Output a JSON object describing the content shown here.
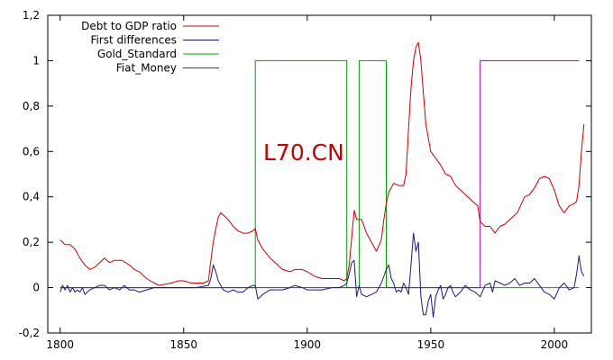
{
  "watermark": "L70.CN",
  "colors": {
    "debt": "#cc0000",
    "diff": "#1a1a80",
    "gold": "#00a000",
    "fiat": "#a000a0"
  },
  "chart_data": {
    "type": "line",
    "title": "",
    "xlabel": "",
    "ylabel": "",
    "xlim": [
      1795,
      2015
    ],
    "ylim": [
      -0.2,
      1.2
    ],
    "xticks": [
      1800,
      1850,
      1900,
      1950,
      2000
    ],
    "xtick_labels": [
      "1800",
      "1850",
      "1900",
      "1950",
      "2000"
    ],
    "yticks": [
      -0.2,
      0,
      0.2,
      0.4,
      0.6,
      0.8,
      1,
      1.2
    ],
    "ytick_labels": [
      "-0,2",
      "0",
      "0,2",
      "0,4",
      "0,6",
      "0,8",
      "1",
      "1,2"
    ],
    "legend_position": "top-left",
    "grid": false,
    "series": [
      {
        "name": "Debt to GDP ratio",
        "x": [
          1800,
          1802,
          1804,
          1806,
          1808,
          1810,
          1812,
          1814,
          1816,
          1818,
          1820,
          1822,
          1825,
          1828,
          1830,
          1832,
          1835,
          1838,
          1840,
          1845,
          1848,
          1850,
          1853,
          1855,
          1858,
          1860,
          1861,
          1862,
          1863,
          1864,
          1865,
          1866,
          1868,
          1870,
          1872,
          1874,
          1876,
          1878,
          1879,
          1880,
          1882,
          1885,
          1888,
          1890,
          1893,
          1895,
          1898,
          1900,
          1903,
          1906,
          1910,
          1913,
          1915,
          1916,
          1917,
          1918,
          1919,
          1920,
          1922,
          1924,
          1926,
          1928,
          1930,
          1931,
          1932,
          1933,
          1934,
          1935,
          1937,
          1939,
          1940,
          1941,
          1942,
          1943,
          1944,
          1945,
          1946,
          1947,
          1948,
          1950,
          1952,
          1954,
          1956,
          1958,
          1960,
          1963,
          1966,
          1969,
          1970,
          1972,
          1974,
          1976,
          1978,
          1980,
          1982,
          1985,
          1988,
          1990,
          1992,
          1994,
          1996,
          1998,
          2000,
          2002,
          2004,
          2006,
          2008,
          2009,
          2010,
          2011,
          2012
        ],
        "y": [
          0.21,
          0.19,
          0.19,
          0.17,
          0.13,
          0.1,
          0.08,
          0.09,
          0.11,
          0.13,
          0.11,
          0.12,
          0.12,
          0.1,
          0.08,
          0.07,
          0.04,
          0.02,
          0.01,
          0.02,
          0.03,
          0.03,
          0.02,
          0.02,
          0.02,
          0.03,
          0.12,
          0.2,
          0.26,
          0.31,
          0.33,
          0.32,
          0.3,
          0.27,
          0.25,
          0.24,
          0.24,
          0.25,
          0.26,
          0.21,
          0.17,
          0.13,
          0.1,
          0.08,
          0.07,
          0.08,
          0.08,
          0.07,
          0.05,
          0.04,
          0.04,
          0.04,
          0.03,
          0.04,
          0.1,
          0.22,
          0.34,
          0.3,
          0.3,
          0.24,
          0.2,
          0.16,
          0.21,
          0.3,
          0.37,
          0.42,
          0.44,
          0.46,
          0.45,
          0.45,
          0.5,
          0.7,
          0.88,
          1.0,
          1.06,
          1.08,
          1.0,
          0.86,
          0.72,
          0.6,
          0.57,
          0.54,
          0.5,
          0.49,
          0.45,
          0.42,
          0.39,
          0.36,
          0.29,
          0.27,
          0.27,
          0.24,
          0.27,
          0.28,
          0.3,
          0.33,
          0.4,
          0.41,
          0.44,
          0.48,
          0.49,
          0.48,
          0.43,
          0.36,
          0.33,
          0.36,
          0.37,
          0.38,
          0.45,
          0.6,
          0.72
        ]
      },
      {
        "name": "First differences",
        "x": [
          1800,
          1801,
          1802,
          1803,
          1804,
          1805,
          1806,
          1807,
          1808,
          1809,
          1810,
          1812,
          1814,
          1816,
          1818,
          1820,
          1822,
          1824,
          1826,
          1828,
          1830,
          1832,
          1835,
          1838,
          1840,
          1845,
          1850,
          1855,
          1860,
          1861,
          1862,
          1863,
          1864,
          1865,
          1866,
          1868,
          1870,
          1872,
          1874,
          1876,
          1878,
          1879,
          1880,
          1882,
          1885,
          1888,
          1890,
          1893,
          1895,
          1898,
          1900,
          1903,
          1906,
          1910,
          1913,
          1915,
          1916,
          1917,
          1918,
          1919,
          1920,
          1921,
          1922,
          1924,
          1926,
          1928,
          1930,
          1931,
          1932,
          1933,
          1934,
          1935,
          1936,
          1937,
          1938,
          1939,
          1940,
          1941,
          1942,
          1943,
          1944,
          1945,
          1946,
          1947,
          1948,
          1949,
          1950,
          1951,
          1952,
          1953,
          1954,
          1955,
          1956,
          1957,
          1958,
          1959,
          1960,
          1962,
          1964,
          1966,
          1968,
          1970,
          1972,
          1974,
          1975,
          1976,
          1978,
          1980,
          1982,
          1984,
          1986,
          1988,
          1990,
          1992,
          1994,
          1996,
          1998,
          2000,
          2002,
          2004,
          2006,
          2008,
          2009,
          2010,
          2011,
          2012
        ],
        "y": [
          -0.02,
          0.01,
          -0.01,
          0.01,
          -0.02,
          0.0,
          -0.02,
          -0.01,
          -0.02,
          0.0,
          -0.03,
          -0.01,
          0.0,
          0.01,
          0.01,
          -0.01,
          0.0,
          -0.01,
          0.01,
          -0.01,
          -0.01,
          -0.02,
          -0.01,
          0.0,
          0.0,
          0.0,
          0.0,
          0.0,
          0.01,
          0.04,
          0.1,
          0.07,
          0.03,
          0.01,
          -0.01,
          -0.02,
          -0.01,
          -0.02,
          -0.02,
          0.0,
          0.01,
          0.01,
          -0.05,
          -0.03,
          -0.01,
          -0.01,
          -0.01,
          0.0,
          0.01,
          0.0,
          -0.01,
          -0.01,
          -0.01,
          0.0,
          0.0,
          0.01,
          0.02,
          0.06,
          0.11,
          0.12,
          -0.04,
          0.01,
          -0.03,
          -0.04,
          -0.03,
          -0.02,
          0.02,
          0.05,
          0.08,
          0.1,
          0.04,
          0.02,
          -0.02,
          -0.01,
          -0.02,
          0.02,
          0.0,
          -0.03,
          0.1,
          0.24,
          0.16,
          0.2,
          -0.04,
          -0.12,
          -0.12,
          -0.06,
          -0.03,
          -0.13,
          -0.04,
          -0.01,
          0.01,
          -0.05,
          -0.03,
          0.0,
          0.01,
          -0.02,
          -0.04,
          -0.02,
          0.01,
          -0.01,
          -0.02,
          -0.04,
          0.01,
          0.02,
          -0.02,
          0.03,
          0.02,
          0.01,
          0.02,
          0.04,
          0.01,
          0.02,
          0.02,
          0.04,
          0.01,
          -0.02,
          -0.03,
          -0.05,
          0.0,
          0.02,
          -0.01,
          0.0,
          0.06,
          0.14,
          0.07,
          0.05
        ]
      },
      {
        "name": "Gold_Standard",
        "x": [
          1800,
          1879,
          1879,
          1916,
          1916,
          1921,
          1921,
          1932,
          1932,
          2010
        ],
        "y": [
          0,
          0,
          1,
          1,
          0,
          0,
          1,
          1,
          0,
          0
        ]
      },
      {
        "name": "Fiat_Money",
        "x": [
          1800,
          1970,
          1970,
          2010
        ],
        "y": [
          0,
          0,
          1,
          1
        ]
      }
    ]
  }
}
